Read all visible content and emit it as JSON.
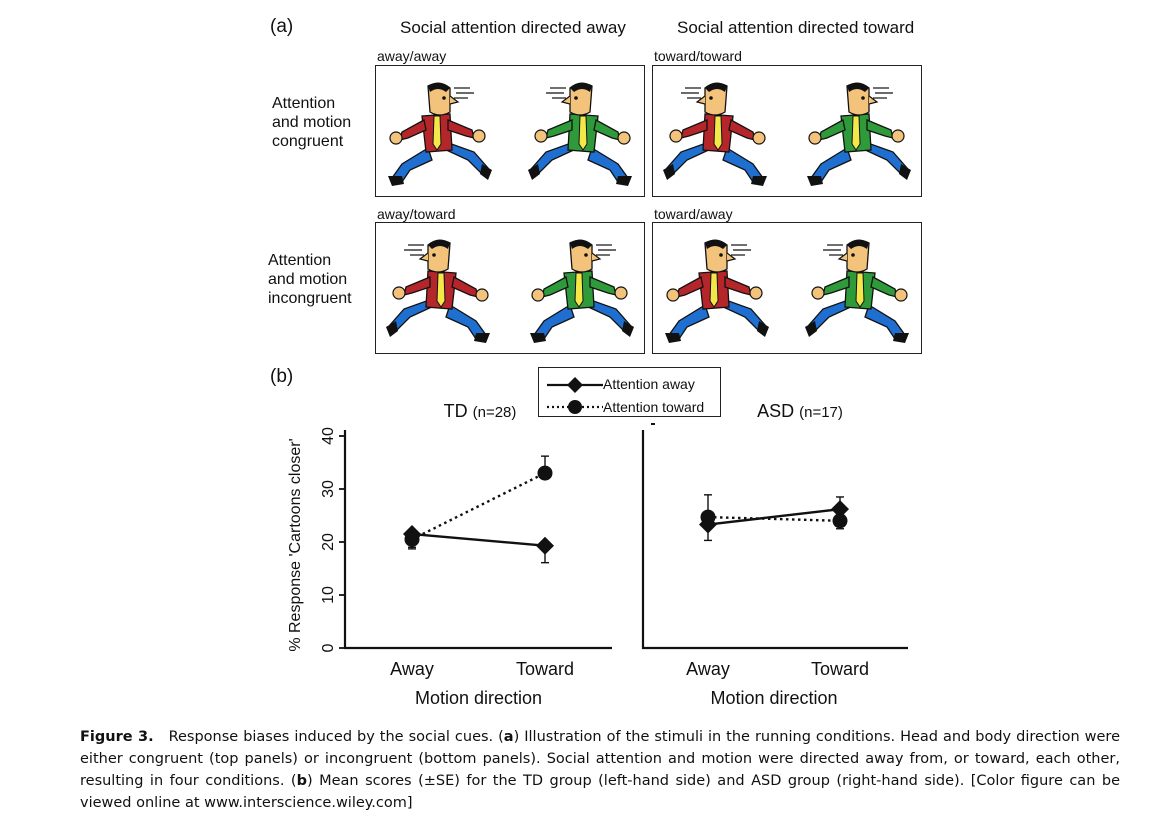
{
  "panel_a": {
    "letter": "(a)",
    "col_away": "Social attention directed away",
    "col_toward": "Social attention directed toward",
    "row_congruent": [
      "Attention",
      "and motion",
      "congruent"
    ],
    "row_incongruent": [
      "Attention",
      "and motion",
      "incongruent"
    ],
    "panels": [
      {
        "label": "away/away"
      },
      {
        "label": "toward/toward"
      },
      {
        "label": "away/toward"
      },
      {
        "label": "toward/away"
      }
    ],
    "colors": {
      "red_shirt": "#b5262b",
      "green_shirt": "#2e9a3a",
      "pants": "#1f6fd1",
      "tie": "#f3e74a",
      "skin": "#f3c37b"
    },
    "icon": "running-cartoon-figure"
  },
  "panel_b": {
    "letter": "(b)",
    "legend": {
      "away": "Attention away",
      "toward": "Attention toward"
    }
  },
  "chart_data": [
    {
      "type": "line",
      "title": "TD",
      "subtitle": "(n=28)",
      "categories": [
        "Away",
        "Toward"
      ],
      "xlabel": "Motion direction",
      "ylabel": "% Response 'Cartoons closer'",
      "ylim": [
        0,
        40
      ],
      "yticks": [
        "0",
        "10",
        "20",
        "30",
        "40"
      ],
      "series": [
        {
          "name": "Attention away",
          "style": "solid",
          "marker": "diamond",
          "values": [
            21.5,
            19.3
          ],
          "se": [
            2.5,
            3.2
          ]
        },
        {
          "name": "Attention toward",
          "style": "dotted",
          "marker": "circle",
          "values": [
            20.5,
            33.0
          ],
          "se": [
            1.8,
            3.2
          ]
        }
      ]
    },
    {
      "type": "line",
      "title": "ASD",
      "subtitle": "(n=17)",
      "categories": [
        "Away",
        "Toward"
      ],
      "xlabel": "Motion direction",
      "ylabel": "",
      "ylim": [
        0,
        40
      ],
      "series": [
        {
          "name": "Attention away",
          "style": "solid",
          "marker": "diamond",
          "values": [
            23.3,
            26.2
          ],
          "se": [
            3.0,
            2.3
          ]
        },
        {
          "name": "Attention toward",
          "style": "dotted",
          "marker": "circle",
          "values": [
            24.7,
            24.0
          ],
          "se": [
            4.2,
            1.5
          ]
        }
      ]
    }
  ],
  "caption": {
    "figure_label": "Figure 3.",
    "s1": "Response biases induced by the social cues. (",
    "a": "a",
    "s2": ") Illustration of the stimuli in the running conditions. Head and body direction were either congruent (top panels) or incongruent (bottom panels). Social attention and motion were directed away from, or toward, each other, resulting in four conditions. (",
    "b": "b",
    "s3": ") Mean scores (±SE) for the TD group (left-hand side) and ASD group (right-hand side). [Color figure can be viewed online at www.interscience.wiley.com]"
  }
}
